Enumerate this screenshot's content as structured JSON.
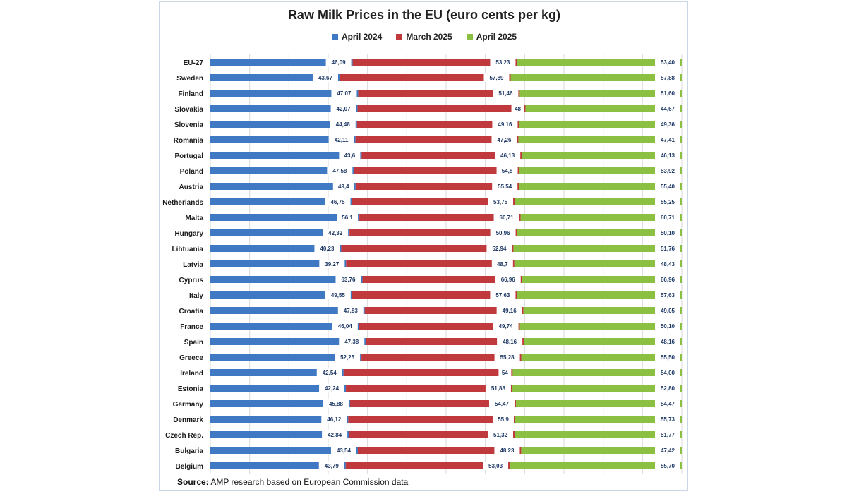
{
  "chart_data": {
    "type": "bar",
    "stacked": true,
    "orientation": "horizontal",
    "title": "Raw Milk Prices in the EU (euro cents per kg)",
    "colors": {
      "April 2024": "#3f78c3",
      "March 2025": "#c0393c",
      "April 2025": "#8cc043"
    },
    "grid": true,
    "legend_position": "top",
    "categories": [
      "EU-27",
      "Sweden",
      "Finland",
      "Slovakia",
      "Slovenia",
      "Romania",
      "Portugal",
      "Poland",
      "Austria",
      "Netherlands",
      "Malta",
      "Hungary",
      "Lihtuania",
      "Latvia",
      "Cyprus",
      "Italy",
      "Croatia",
      "France",
      "Spain",
      "Greece",
      "Ireland",
      "Estonia",
      "Germany",
      "Denmark",
      "Czech Rep.",
      "Bulgaria",
      "Belgium"
    ],
    "series": [
      {
        "name": "April 2024",
        "values": [
          46.09,
          43.67,
          47.07,
          42.07,
          44.48,
          42.11,
          43.6,
          47.58,
          49.4,
          46.75,
          56.1,
          42.32,
          40.23,
          39.27,
          63.76,
          49.55,
          47.83,
          46.04,
          47.38,
          52.25,
          42.54,
          42.24,
          45.88,
          46.12,
          42.84,
          43.54,
          43.79
        ],
        "labels": [
          "46,09",
          "43,67",
          "47,07",
          "42,07",
          "44,48",
          "42,11",
          "43,6",
          "47,58",
          "49,4",
          "46,75",
          "56,1",
          "42,32",
          "40,23",
          "39,27",
          "63,76",
          "49,55",
          "47,83",
          "46,04",
          "47,38",
          "52,25",
          "42,54",
          "42,24",
          "45,88",
          "46,12",
          "42,84",
          "43,54",
          "43,79"
        ]
      },
      {
        "name": "March 2025",
        "values": [
          53.23,
          57.89,
          51.46,
          48,
          49.16,
          47.26,
          46.13,
          54.8,
          55.54,
          53.75,
          60.71,
          50.96,
          52.94,
          48.7,
          66.96,
          57.63,
          49.16,
          49.74,
          48.16,
          55.28,
          54,
          51.88,
          54.47,
          55.9,
          51.32,
          48.23,
          53.03
        ],
        "labels": [
          "53,23",
          "57,89",
          "51,46",
          "48",
          "49,16",
          "47,26",
          "46,13",
          "54,8",
          "55,54",
          "53,75",
          "60,71",
          "50,96",
          "52,94",
          "48,7",
          "66,96",
          "57,63",
          "49,16",
          "49,74",
          "48,16",
          "55,28",
          "54",
          "51,88",
          "54,47",
          "55,9",
          "51,32",
          "48,23",
          "53,03"
        ]
      },
      {
        "name": "April 2025",
        "values": [
          53.4,
          57.88,
          51.6,
          44.67,
          49.36,
          47.41,
          46.13,
          53.92,
          55.4,
          55.25,
          60.71,
          50.1,
          51.76,
          48.43,
          66.96,
          57.63,
          49.05,
          50.1,
          48.16,
          55.5,
          54.0,
          52.8,
          54.47,
          55.73,
          51.77,
          47.42,
          55.7
        ],
        "labels": [
          "53,40",
          "57,88",
          "51,60",
          "44,67",
          "49,36",
          "47,41",
          "46,13",
          "53,92",
          "55,40",
          "55,25",
          "60,71",
          "50,10",
          "51,76",
          "48,43",
          "66,96",
          "57,63",
          "49,05",
          "50,10",
          "48,16",
          "55,50",
          "54,00",
          "52,80",
          "54,47",
          "55,73",
          "51,77",
          "47,42",
          "55,70"
        ]
      }
    ]
  },
  "source": {
    "label": "Source:",
    "text": " AMP research based on European Commission data"
  }
}
